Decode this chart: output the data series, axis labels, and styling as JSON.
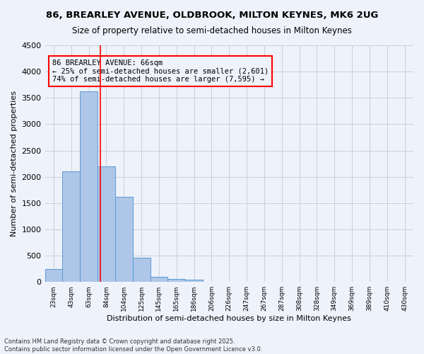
{
  "title_line1": "86, BREARLEY AVENUE, OLDBROOK, MILTON KEYNES, MK6 2UG",
  "title_line2": "Size of property relative to semi-detached houses in Milton Keynes",
  "xlabel": "Distribution of semi-detached houses by size in Milton Keynes",
  "ylabel": "Number of semi-detached properties",
  "footer_line1": "Contains HM Land Registry data © Crown copyright and database right 2025.",
  "footer_line2": "Contains public sector information licensed under the Open Government Licence v3.0.",
  "bar_labels": [
    "23sqm",
    "43sqm",
    "63sqm",
    "84sqm",
    "104sqm",
    "125sqm",
    "145sqm",
    "165sqm",
    "186sqm",
    "206sqm",
    "226sqm",
    "247sqm",
    "267sqm",
    "287sqm",
    "308sqm",
    "328sqm",
    "349sqm",
    "369sqm",
    "389sqm",
    "410sqm",
    "430sqm"
  ],
  "bar_values": [
    250,
    2100,
    3620,
    2200,
    1620,
    460,
    100,
    55,
    40,
    0,
    0,
    0,
    0,
    0,
    0,
    0,
    0,
    0,
    0,
    0,
    0
  ],
  "bar_color": "#AEC6E8",
  "bar_edge_color": "#5B9BD5",
  "ylim": [
    0,
    4500
  ],
  "yticks": [
    0,
    500,
    1000,
    1500,
    2000,
    2500,
    3000,
    3500,
    4000,
    4500
  ],
  "property_size": 66,
  "property_label": "86 BREARLEY AVENUE: 66sqm",
  "pct_smaller": 25,
  "count_smaller": 2601,
  "pct_larger": 74,
  "count_larger": 7595,
  "bg_color": "#EEF2FA",
  "grid_color": "#C8D0DC"
}
